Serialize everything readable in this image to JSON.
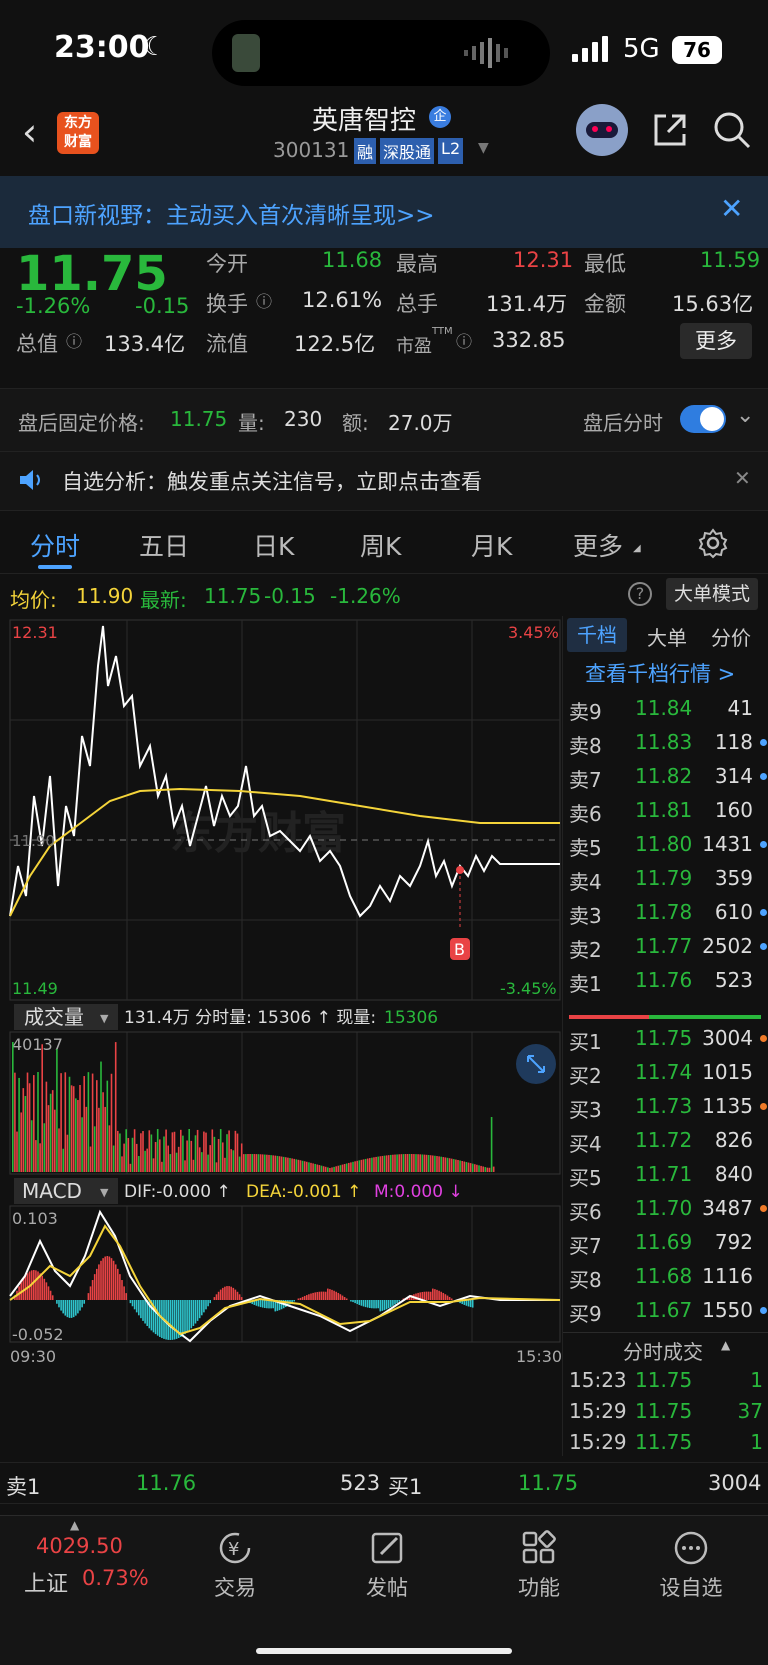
{
  "status": {
    "time": "23:00",
    "network": "5G",
    "battery": "76"
  },
  "header": {
    "logo_line1": "东方",
    "logo_line2": "财富",
    "stock_name": "英唐智控",
    "badge": "企",
    "code": "300131",
    "tags": [
      "融",
      "深股通",
      "L2"
    ]
  },
  "banner": {
    "text": "盘口新视野：主动买入首次清晰呈现>>"
  },
  "quote": {
    "price": "11.75",
    "pct": "-1.26%",
    "chg": "-0.15",
    "open_label": "今开",
    "open": "11.68",
    "high_label": "最高",
    "high": "12.31",
    "low_label": "最低",
    "low": "11.59",
    "turnover_label": "换手",
    "turnover": "12.61%",
    "vol_label": "总手",
    "vol": "131.4万",
    "amount_label": "金额",
    "amount": "15.63亿",
    "mcap_label": "总值",
    "mcap": "133.4亿",
    "float_label": "流值",
    "float": "122.5亿",
    "pe_label": "市盈",
    "pe_sup": "TTM",
    "pe": "332.85",
    "more": "更多"
  },
  "afterhours": {
    "label": "盘后固定价格:",
    "price": "11.75",
    "vol_label": "量:",
    "vol": "230",
    "amt_label": "额:",
    "amt": "27.0万",
    "toggle_label": "盘后分时",
    "toggle_on": true
  },
  "notice": {
    "text": "自选分析：触发重点关注信号，立即点击查看"
  },
  "tabs": [
    "分时",
    "五日",
    "日K",
    "周K",
    "月K",
    "更多"
  ],
  "active_tab": "分时",
  "infobar": {
    "avg_label": "均价:",
    "avg": "11.90",
    "last_label": "最新:",
    "last": "11.75",
    "chg": "-0.15",
    "pct": "-1.26%",
    "mode": "大单模式"
  },
  "chart_labels": {
    "top_price": "12.31",
    "bottom_price": "11.49",
    "top_pct": "3.45%",
    "bottom_pct": "-3.45%",
    "ref_price": "11.90",
    "marker": "B",
    "watermark": "东方财富",
    "vol_select": "成交量",
    "vol_info": "131.4万 分时量: 15306 ↑ 现量: ",
    "vol_now": "15306",
    "vol_max": "40137",
    "macd_select": "MACD",
    "dif": "DIF:-0.000 ↑",
    "dea": "DEA:-0.001 ↑",
    "m": "M:0.000 ↓",
    "macd_top": "0.103",
    "macd_bottom": "-0.052",
    "t_start": "09:30",
    "t_end": "15:30"
  },
  "book": {
    "tabs": [
      "千档",
      "大单",
      "分价"
    ],
    "link": "查看千档行情 >",
    "asks": [
      {
        "l": "卖9",
        "p": "11.84",
        "v": "41",
        "d": ""
      },
      {
        "l": "卖8",
        "p": "11.83",
        "v": "118",
        "d": "blue"
      },
      {
        "l": "卖7",
        "p": "11.82",
        "v": "314",
        "d": "blue"
      },
      {
        "l": "卖6",
        "p": "11.81",
        "v": "160",
        "d": ""
      },
      {
        "l": "卖5",
        "p": "11.80",
        "v": "1431",
        "d": "blue"
      },
      {
        "l": "卖4",
        "p": "11.79",
        "v": "359",
        "d": ""
      },
      {
        "l": "卖3",
        "p": "11.78",
        "v": "610",
        "d": "blue"
      },
      {
        "l": "卖2",
        "p": "11.77",
        "v": "2502",
        "d": "blue"
      },
      {
        "l": "卖1",
        "p": "11.76",
        "v": "523",
        "d": ""
      }
    ],
    "bids": [
      {
        "l": "买1",
        "p": "11.75",
        "v": "3004",
        "d": "orange"
      },
      {
        "l": "买2",
        "p": "11.74",
        "v": "1015",
        "d": ""
      },
      {
        "l": "买3",
        "p": "11.73",
        "v": "1135",
        "d": "orange"
      },
      {
        "l": "买4",
        "p": "11.72",
        "v": "826",
        "d": ""
      },
      {
        "l": "买5",
        "p": "11.71",
        "v": "840",
        "d": ""
      },
      {
        "l": "买6",
        "p": "11.70",
        "v": "3487",
        "d": "orange"
      },
      {
        "l": "买7",
        "p": "11.69",
        "v": "792",
        "d": ""
      },
      {
        "l": "买8",
        "p": "11.68",
        "v": "1116",
        "d": ""
      },
      {
        "l": "买9",
        "p": "11.67",
        "v": "1550",
        "d": "blue"
      }
    ],
    "trades_title": "分时成交",
    "trades": [
      {
        "t": "15:23",
        "p": "11.75",
        "v": "1"
      },
      {
        "t": "15:29",
        "p": "11.75",
        "v": "37"
      },
      {
        "t": "15:29",
        "p": "11.75",
        "v": "1"
      }
    ]
  },
  "bottom_quote": {
    "ask_label": "卖1",
    "ask_price": "11.76",
    "ask_vol": "523",
    "bid_label": "买1",
    "bid_price": "11.75",
    "bid_vol": "3004"
  },
  "nav": {
    "index_value": "4029.50",
    "index_name": "上证",
    "index_pct": "0.73%",
    "items": [
      "交易",
      "发帖",
      "功能",
      "设自选"
    ]
  },
  "colors": {
    "up": "#e94345",
    "down": "#29b83c",
    "avg_line": "#f4d43a",
    "accent": "#4da3ff"
  }
}
